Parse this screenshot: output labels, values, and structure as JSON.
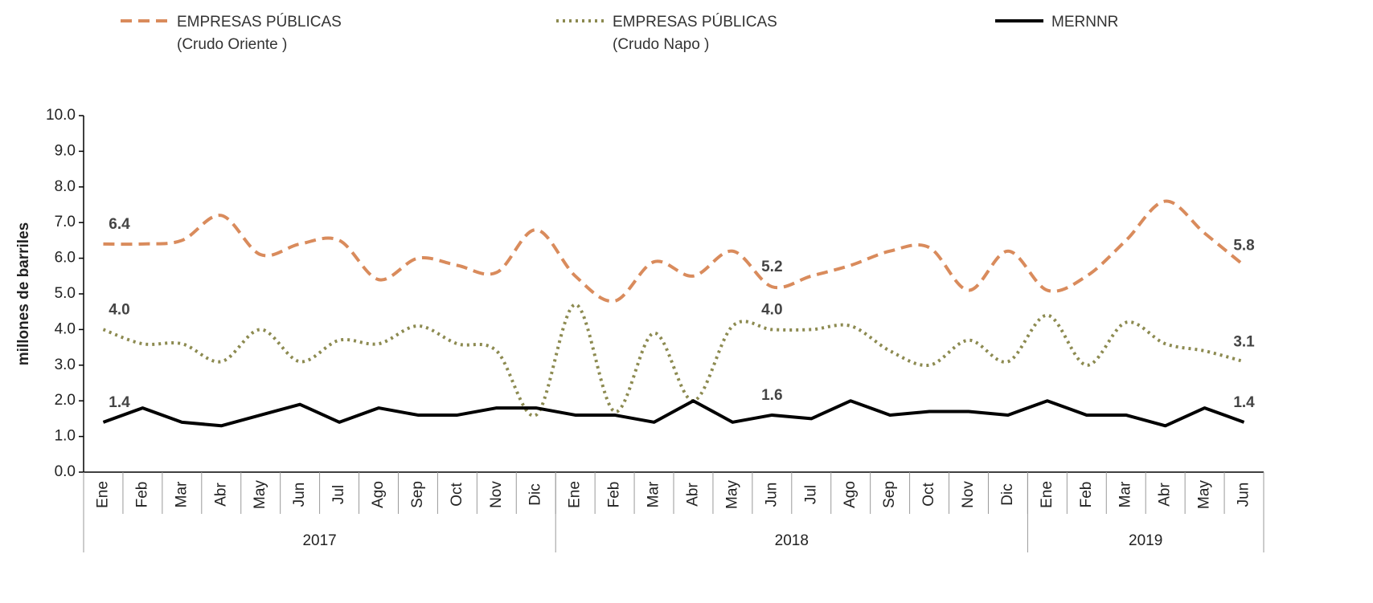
{
  "chart_data": {
    "type": "line",
    "y_label": "millones de barriles",
    "categories": [
      "Ene",
      "Feb",
      "Mar",
      "Abr",
      "May",
      "Jun",
      "Jul",
      "Ago",
      "Sep",
      "Oct",
      "Nov",
      "Dic",
      "Ene",
      "Feb",
      "Mar",
      "Abr",
      "May",
      "Jun",
      "Jul",
      "Ago",
      "Sep",
      "Oct",
      "Nov",
      "Dic",
      "Ene",
      "Feb",
      "Mar",
      "Abr",
      "May",
      "Jun"
    ],
    "groups": [
      {
        "label": "2017",
        "size": 12
      },
      {
        "label": "2018",
        "size": 12
      },
      {
        "label": "2019",
        "size": 6
      }
    ],
    "series": [
      {
        "name": "EMPRESAS PÚBLICAS\n(Crudo Oriente )",
        "color": "#d98b5c",
        "dash": "14 8",
        "smooth": true,
        "values": [
          6.4,
          6.4,
          6.5,
          7.2,
          6.1,
          6.4,
          6.5,
          5.4,
          6.0,
          5.8,
          5.6,
          6.8,
          5.5,
          4.8,
          5.9,
          5.5,
          6.2,
          5.2,
          5.5,
          5.8,
          6.2,
          6.3,
          5.1,
          6.2,
          5.1,
          5.5,
          6.5,
          7.6,
          6.7,
          5.8
        ],
        "value_labels": [
          "6.4",
          null,
          null,
          null,
          null,
          null,
          null,
          null,
          null,
          null,
          null,
          null,
          null,
          null,
          null,
          null,
          null,
          "5.2",
          null,
          null,
          null,
          null,
          null,
          null,
          null,
          null,
          null,
          null,
          null,
          "5.8"
        ]
      },
      {
        "name": "EMPRESAS PÚBLICAS\n(Crudo Napo )",
        "color": "#8c8a50",
        "dash": "3 5",
        "smooth": true,
        "values": [
          4.0,
          3.6,
          3.6,
          3.1,
          4.0,
          3.1,
          3.7,
          3.6,
          4.1,
          3.6,
          3.4,
          1.6,
          4.7,
          1.7,
          3.9,
          2.0,
          4.1,
          4.0,
          4.0,
          4.1,
          3.4,
          3.0,
          3.7,
          3.1,
          4.4,
          3.0,
          4.2,
          3.6,
          3.4,
          3.1
        ],
        "value_labels": [
          "4.0",
          null,
          null,
          null,
          null,
          null,
          null,
          null,
          null,
          null,
          null,
          null,
          null,
          null,
          null,
          null,
          null,
          "4.0",
          null,
          null,
          null,
          null,
          null,
          null,
          null,
          null,
          null,
          null,
          null,
          "3.1"
        ]
      },
      {
        "name": "MERNNR",
        "color": "#000000",
        "dash": "",
        "smooth": false,
        "values": [
          1.4,
          1.8,
          1.4,
          1.3,
          1.6,
          1.9,
          1.4,
          1.8,
          1.6,
          1.6,
          1.8,
          1.8,
          1.6,
          1.6,
          1.4,
          2.0,
          1.4,
          1.6,
          1.5,
          2.0,
          1.6,
          1.7,
          1.7,
          1.6,
          2.0,
          1.6,
          1.6,
          1.3,
          1.8,
          1.4
        ],
        "value_labels": [
          "1.4",
          null,
          null,
          null,
          null,
          null,
          null,
          null,
          null,
          null,
          null,
          null,
          null,
          null,
          null,
          null,
          null,
          "1.6",
          null,
          null,
          null,
          null,
          null,
          null,
          null,
          null,
          null,
          null,
          null,
          "1.4"
        ]
      }
    ],
    "ylim": [
      0,
      10
    ],
    "yticks": [
      {
        "value": 0,
        "label": "0.0"
      },
      {
        "value": 1,
        "label": "1.0"
      },
      {
        "value": 2,
        "label": "2.0"
      },
      {
        "value": 3,
        "label": "3.0"
      },
      {
        "value": 4,
        "label": "4.0"
      },
      {
        "value": 5,
        "label": "5.0"
      },
      {
        "value": 6,
        "label": "6.0"
      },
      {
        "value": 7,
        "label": "7.0"
      },
      {
        "value": 8,
        "label": "8.0"
      },
      {
        "value": 9,
        "label": "9.0"
      },
      {
        "value": 10,
        "label": "10.0"
      }
    ],
    "legend": "top"
  }
}
